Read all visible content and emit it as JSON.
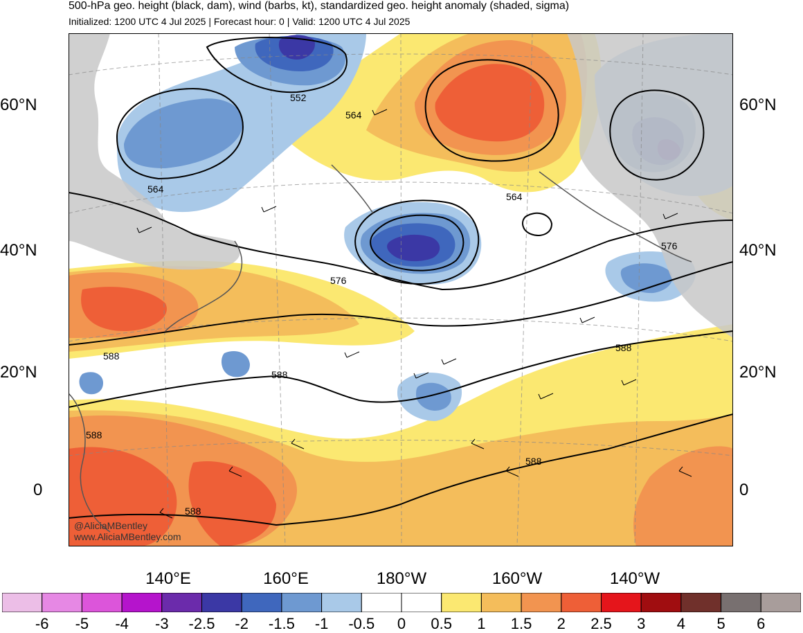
{
  "header": {
    "title": "500-hPa geo. height (black, dam), wind (barbs, kt), standardized geo. height anomaly (shaded, sigma)",
    "subtitle": "Initialized: 1200 UTC 4 Jul 2025 | Forecast hour: 0 | Valid: 1200 UTC 4 Jul 2025"
  },
  "axes": {
    "lat_left": [
      "60°N",
      "40°N",
      "20°N",
      "0"
    ],
    "lat_right": [
      "60°N",
      "40°N",
      "20°N",
      "0"
    ],
    "lon_bottom": [
      "140°E",
      "160°E",
      "180°W",
      "160°W",
      "140°W"
    ]
  },
  "contours": {
    "labels": [
      "552",
      "564",
      "564",
      "564",
      "576",
      "576",
      "588",
      "588",
      "588",
      "588",
      "588",
      "588"
    ]
  },
  "watermark": {
    "line1": "@AliciaMBentley",
    "line2": "www.AliciaMBentley.com"
  },
  "colorbar": {
    "colors": [
      "#ecbee7",
      "#e688e4",
      "#dc55da",
      "#b514cc",
      "#6b2bab",
      "#3b38a5",
      "#3f67bd",
      "#6e99d1",
      "#a9c9e8",
      "#ffffff",
      "#ffffff",
      "#fbe871",
      "#f4bd5b",
      "#f29450",
      "#ee5f37",
      "#e5151b",
      "#a00d10",
      "#70302b",
      "#787070",
      "#a89d9b"
    ],
    "labels": [
      "-6",
      "-5",
      "-4",
      "-3",
      "-2.5",
      "-2",
      "-1.5",
      "-1",
      "-0.5",
      "0",
      "0.5",
      "1",
      "1.5",
      "2",
      "2.5",
      "3",
      "4",
      "5",
      "6"
    ]
  }
}
